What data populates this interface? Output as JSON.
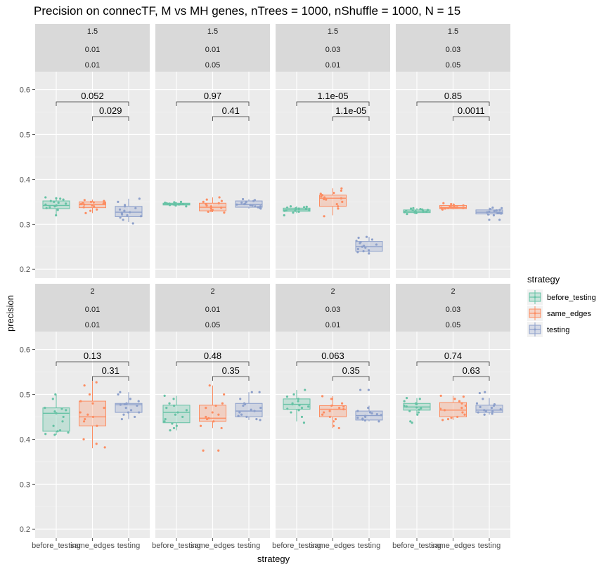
{
  "chart_data": {
    "type": "box",
    "title": "Precision on connecTF, M vs MH genes, nTrees = 1000, nShuffle = 1000, N = 15",
    "xlabel": "strategy",
    "ylabel": "precision",
    "categories": [
      "before_testing",
      "same_edges",
      "testing"
    ],
    "ylim": [
      0.18,
      0.64
    ],
    "yticks": [
      0.2,
      0.3,
      0.4,
      0.5,
      0.6
    ],
    "ytick_labels": [
      "0.2",
      "0.3",
      "0.4",
      "0.5",
      "0.6"
    ],
    "grid": true,
    "legend": {
      "title": "strategy",
      "placement": "right",
      "entries": [
        "before_testing",
        "same_edges",
        "testing"
      ]
    },
    "colors": {
      "before_testing": "#66c2a5",
      "same_edges": "#fc8d62",
      "testing": "#8da0cb",
      "panel_bg": "#ebebeb",
      "strip_bg": "#d9d9d9"
    },
    "panels": [
      {
        "strip": [
          "1.5",
          "0.01",
          "0.01"
        ],
        "pvalues": [
          "0.052",
          "0.029"
        ],
        "boxes": [
          {
            "strategy": "before_testing",
            "min": 0.32,
            "q1": 0.335,
            "median": 0.342,
            "q3": 0.352,
            "max": 0.36
          },
          {
            "strategy": "same_edges",
            "min": 0.325,
            "q1": 0.337,
            "median": 0.344,
            "q3": 0.35,
            "max": 0.355
          },
          {
            "strategy": "testing",
            "min": 0.305,
            "q1": 0.317,
            "median": 0.327,
            "q3": 0.34,
            "max": 0.357
          }
        ],
        "points": [
          [
            0.32,
            0.332,
            0.336,
            0.338,
            0.34,
            0.342,
            0.344,
            0.346,
            0.348,
            0.35,
            0.352,
            0.355,
            0.357,
            0.36,
            0.358
          ],
          [
            0.325,
            0.333,
            0.338,
            0.34,
            0.342,
            0.344,
            0.345,
            0.346,
            0.347,
            0.348,
            0.35,
            0.352,
            0.354,
            0.33,
            0.349
          ],
          [
            0.302,
            0.31,
            0.315,
            0.318,
            0.32,
            0.325,
            0.327,
            0.33,
            0.333,
            0.336,
            0.34,
            0.343,
            0.35,
            0.357,
            0.322
          ]
        ]
      },
      {
        "strip": [
          "1.5",
          "0.01",
          "0.05"
        ],
        "pvalues": [
          "0.97",
          "0.41"
        ],
        "boxes": [
          {
            "strategy": "before_testing",
            "min": 0.34,
            "q1": 0.343,
            "median": 0.345,
            "q3": 0.347,
            "max": 0.35
          },
          {
            "strategy": "same_edges",
            "min": 0.327,
            "q1": 0.33,
            "median": 0.338,
            "q3": 0.347,
            "max": 0.36
          },
          {
            "strategy": "testing",
            "min": 0.335,
            "q1": 0.338,
            "median": 0.344,
            "q3": 0.352,
            "max": 0.356
          }
        ],
        "points": [
          [
            0.34,
            0.342,
            0.343,
            0.344,
            0.344,
            0.345,
            0.345,
            0.346,
            0.346,
            0.347,
            0.347,
            0.348,
            0.349,
            0.35,
            0.345
          ],
          [
            0.326,
            0.328,
            0.33,
            0.332,
            0.335,
            0.337,
            0.338,
            0.34,
            0.342,
            0.345,
            0.347,
            0.35,
            0.355,
            0.36,
            0.352
          ],
          [
            0.335,
            0.337,
            0.338,
            0.34,
            0.342,
            0.343,
            0.344,
            0.345,
            0.346,
            0.348,
            0.35,
            0.352,
            0.354,
            0.356,
            0.34
          ]
        ]
      },
      {
        "strip": [
          "1.5",
          "0.03",
          "0.01"
        ],
        "pvalues": [
          "1.1e-05",
          "1.1e-05"
        ],
        "boxes": [
          {
            "strategy": "before_testing",
            "min": 0.325,
            "q1": 0.329,
            "median": 0.332,
            "q3": 0.336,
            "max": 0.34
          },
          {
            "strategy": "same_edges",
            "min": 0.32,
            "q1": 0.34,
            "median": 0.358,
            "q3": 0.365,
            "max": 0.38
          },
          {
            "strategy": "testing",
            "min": 0.237,
            "q1": 0.24,
            "median": 0.25,
            "q3": 0.262,
            "max": 0.272
          }
        ],
        "points": [
          [
            0.32,
            0.326,
            0.328,
            0.33,
            0.331,
            0.332,
            0.333,
            0.334,
            0.335,
            0.336,
            0.337,
            0.338,
            0.339,
            0.34,
            0.33
          ],
          [
            0.318,
            0.335,
            0.34,
            0.345,
            0.35,
            0.355,
            0.358,
            0.36,
            0.362,
            0.365,
            0.368,
            0.37,
            0.375,
            0.38,
            0.356
          ],
          [
            0.235,
            0.238,
            0.24,
            0.242,
            0.245,
            0.248,
            0.25,
            0.252,
            0.255,
            0.258,
            0.26,
            0.263,
            0.266,
            0.27,
            0.272
          ]
        ]
      },
      {
        "strip": [
          "1.5",
          "0.03",
          "0.05"
        ],
        "pvalues": [
          "0.85",
          "0.0011"
        ],
        "boxes": [
          {
            "strategy": "before_testing",
            "min": 0.323,
            "q1": 0.326,
            "median": 0.329,
            "q3": 0.332,
            "max": 0.336
          },
          {
            "strategy": "same_edges",
            "min": 0.333,
            "q1": 0.335,
            "median": 0.337,
            "q3": 0.342,
            "max": 0.347
          },
          {
            "strategy": "testing",
            "min": 0.32,
            "q1": 0.323,
            "median": 0.327,
            "q3": 0.332,
            "max": 0.337
          }
        ],
        "points": [
          [
            0.323,
            0.325,
            0.326,
            0.327,
            0.328,
            0.329,
            0.33,
            0.331,
            0.332,
            0.333,
            0.334,
            0.335,
            0.336,
            0.33,
            0.328
          ],
          [
            0.333,
            0.334,
            0.335,
            0.336,
            0.337,
            0.337,
            0.338,
            0.339,
            0.34,
            0.342,
            0.343,
            0.345,
            0.347,
            0.336,
            0.338
          ],
          [
            0.31,
            0.31,
            0.32,
            0.322,
            0.324,
            0.326,
            0.327,
            0.328,
            0.33,
            0.331,
            0.332,
            0.334,
            0.336,
            0.337,
            0.325
          ]
        ]
      },
      {
        "strip": [
          "2",
          "0.01",
          "0.01"
        ],
        "pvalues": [
          "0.13",
          "0.31"
        ],
        "boxes": [
          {
            "strategy": "before_testing",
            "min": 0.41,
            "q1": 0.418,
            "median": 0.458,
            "q3": 0.47,
            "max": 0.5
          },
          {
            "strategy": "same_edges",
            "min": 0.38,
            "q1": 0.43,
            "median": 0.45,
            "q3": 0.485,
            "max": 0.53
          },
          {
            "strategy": "testing",
            "min": 0.445,
            "q1": 0.46,
            "median": 0.477,
            "q3": 0.48,
            "max": 0.505
          }
        ],
        "points": [
          [
            0.41,
            0.412,
            0.415,
            0.418,
            0.42,
            0.43,
            0.44,
            0.45,
            0.458,
            0.462,
            0.465,
            0.468,
            0.47,
            0.49,
            0.5
          ],
          [
            0.382,
            0.39,
            0.4,
            0.43,
            0.44,
            0.445,
            0.45,
            0.455,
            0.46,
            0.47,
            0.48,
            0.485,
            0.5,
            0.52,
            0.527
          ],
          [
            0.445,
            0.45,
            0.455,
            0.46,
            0.465,
            0.47,
            0.475,
            0.477,
            0.478,
            0.48,
            0.485,
            0.49,
            0.5,
            0.505,
            0.46
          ]
        ]
      },
      {
        "strip": [
          "2",
          "0.01",
          "0.05"
        ],
        "pvalues": [
          "0.48",
          "0.35"
        ],
        "boxes": [
          {
            "strategy": "before_testing",
            "min": 0.42,
            "q1": 0.437,
            "median": 0.46,
            "q3": 0.476,
            "max": 0.497
          },
          {
            "strategy": "same_edges",
            "min": 0.425,
            "q1": 0.44,
            "median": 0.447,
            "q3": 0.476,
            "max": 0.52
          },
          {
            "strategy": "testing",
            "min": 0.443,
            "q1": 0.45,
            "median": 0.463,
            "q3": 0.48,
            "max": 0.505
          }
        ],
        "points": [
          [
            0.42,
            0.425,
            0.43,
            0.435,
            0.44,
            0.445,
            0.45,
            0.455,
            0.46,
            0.465,
            0.47,
            0.475,
            0.48,
            0.49,
            0.497
          ],
          [
            0.375,
            0.375,
            0.425,
            0.43,
            0.44,
            0.445,
            0.447,
            0.45,
            0.455,
            0.46,
            0.47,
            0.475,
            0.48,
            0.5,
            0.52
          ],
          [
            0.443,
            0.445,
            0.45,
            0.452,
            0.455,
            0.46,
            0.463,
            0.466,
            0.47,
            0.475,
            0.478,
            0.48,
            0.49,
            0.505,
            0.505
          ]
        ]
      },
      {
        "strip": [
          "2",
          "0.03",
          "0.01"
        ],
        "pvalues": [
          "0.063",
          "0.35"
        ],
        "boxes": [
          {
            "strategy": "before_testing",
            "min": 0.44,
            "q1": 0.467,
            "median": 0.478,
            "q3": 0.49,
            "max": 0.51
          },
          {
            "strategy": "same_edges",
            "min": 0.425,
            "q1": 0.45,
            "median": 0.467,
            "q3": 0.475,
            "max": 0.496
          },
          {
            "strategy": "testing",
            "min": 0.44,
            "q1": 0.443,
            "median": 0.453,
            "q3": 0.463,
            "max": 0.475
          }
        ],
        "points": [
          [
            0.437,
            0.45,
            0.46,
            0.465,
            0.468,
            0.47,
            0.473,
            0.476,
            0.478,
            0.48,
            0.485,
            0.49,
            0.495,
            0.5,
            0.51
          ],
          [
            0.425,
            0.43,
            0.44,
            0.445,
            0.45,
            0.455,
            0.46,
            0.463,
            0.467,
            0.47,
            0.473,
            0.475,
            0.48,
            0.49,
            0.496
          ],
          [
            0.44,
            0.442,
            0.444,
            0.446,
            0.448,
            0.45,
            0.452,
            0.454,
            0.456,
            0.458,
            0.46,
            0.463,
            0.47,
            0.51,
            0.51
          ]
        ]
      },
      {
        "strip": [
          "2",
          "0.03",
          "0.05"
        ],
        "pvalues": [
          "0.74",
          "0.63"
        ],
        "boxes": [
          {
            "strategy": "before_testing",
            "min": 0.455,
            "q1": 0.465,
            "median": 0.472,
            "q3": 0.48,
            "max": 0.492
          },
          {
            "strategy": "same_edges",
            "min": 0.443,
            "q1": 0.45,
            "median": 0.465,
            "q3": 0.482,
            "max": 0.497
          },
          {
            "strategy": "testing",
            "min": 0.455,
            "q1": 0.46,
            "median": 0.465,
            "q3": 0.476,
            "max": 0.492
          }
        ],
        "points": [
          [
            0.437,
            0.44,
            0.455,
            0.46,
            0.463,
            0.466,
            0.469,
            0.471,
            0.473,
            0.475,
            0.478,
            0.48,
            0.485,
            0.49,
            0.492
          ],
          [
            0.443,
            0.445,
            0.448,
            0.45,
            0.455,
            0.46,
            0.465,
            0.468,
            0.47,
            0.475,
            0.48,
            0.485,
            0.49,
            0.495,
            0.497
          ],
          [
            0.455,
            0.457,
            0.46,
            0.462,
            0.463,
            0.465,
            0.467,
            0.47,
            0.472,
            0.475,
            0.478,
            0.48,
            0.49,
            0.503,
            0.505
          ]
        ]
      }
    ]
  }
}
